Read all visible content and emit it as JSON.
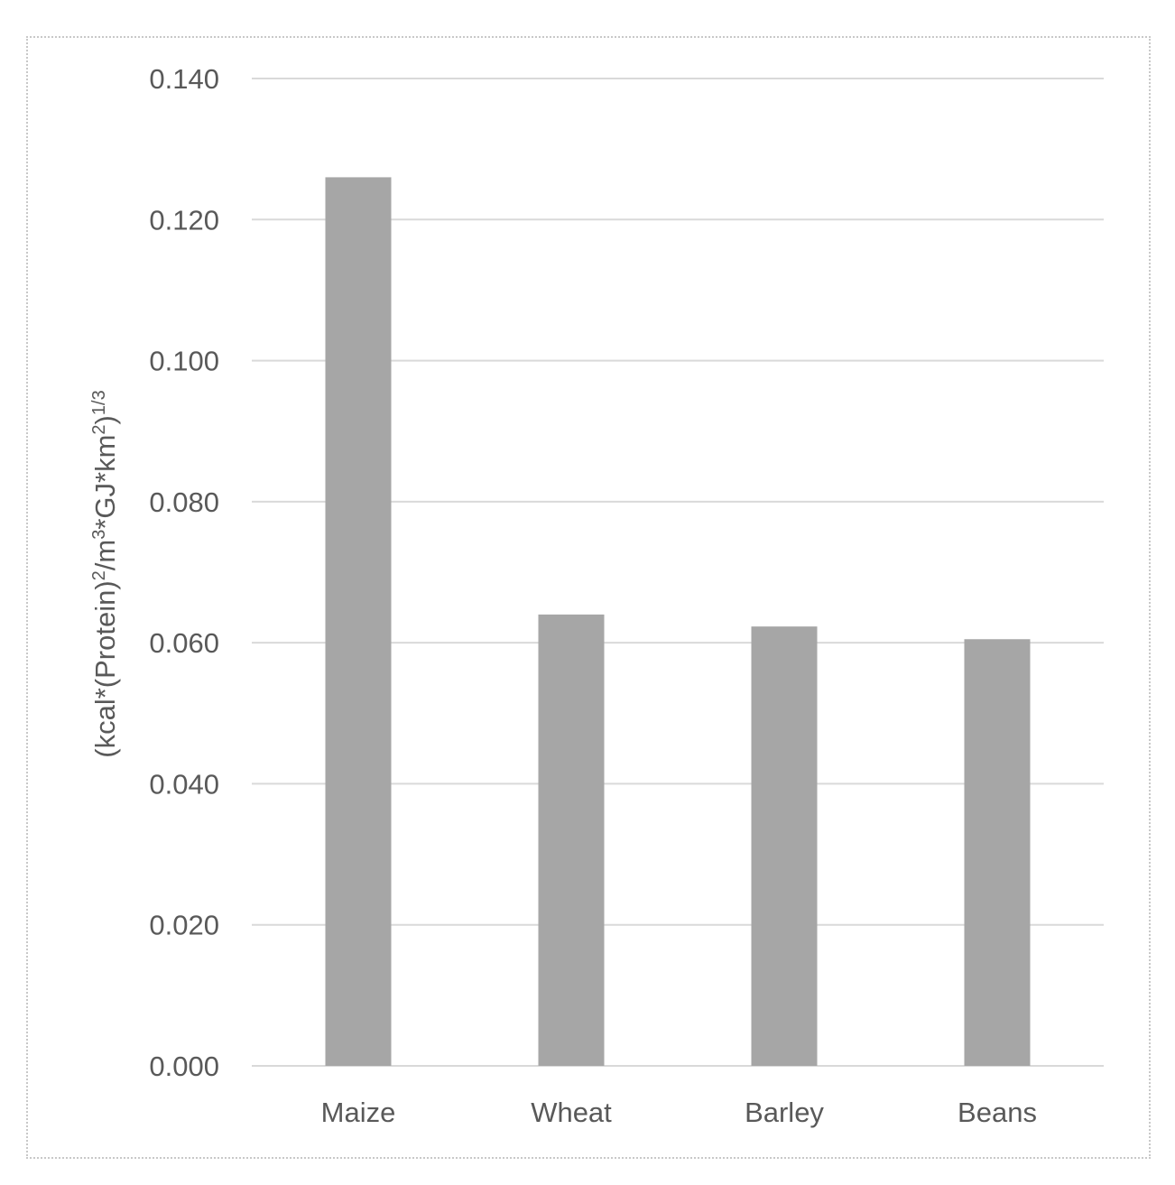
{
  "chart_data": {
    "type": "bar",
    "categories": [
      "Maize",
      "Wheat",
      "Barley",
      "Beans"
    ],
    "values": [
      0.126,
      0.064,
      0.0623,
      0.0605
    ],
    "ylabel": "(kcal*(Protein)²/m³*GJ*km²)¹/³",
    "ylabel_parts": {
      "p1": "(kcal*(Protein)",
      "p2": "2",
      "p3": "/m",
      "p4": "3",
      "p5": "*GJ*km",
      "p6": "2",
      "p7": ")",
      "p8": "1/3"
    },
    "xlabel": "",
    "ylim": [
      0,
      0.14
    ],
    "yticks": [
      0.0,
      0.02,
      0.04,
      0.06,
      0.08,
      0.1,
      0.12,
      0.14
    ],
    "ytick_labels": [
      "0.000",
      "0.020",
      "0.040",
      "0.060",
      "0.080",
      "0.100",
      "0.120",
      "0.140"
    ],
    "grid": true,
    "legend": "none",
    "bar_color": "#a6a6a6",
    "grid_color": "#d9d9d9",
    "text_color": "#595959"
  }
}
